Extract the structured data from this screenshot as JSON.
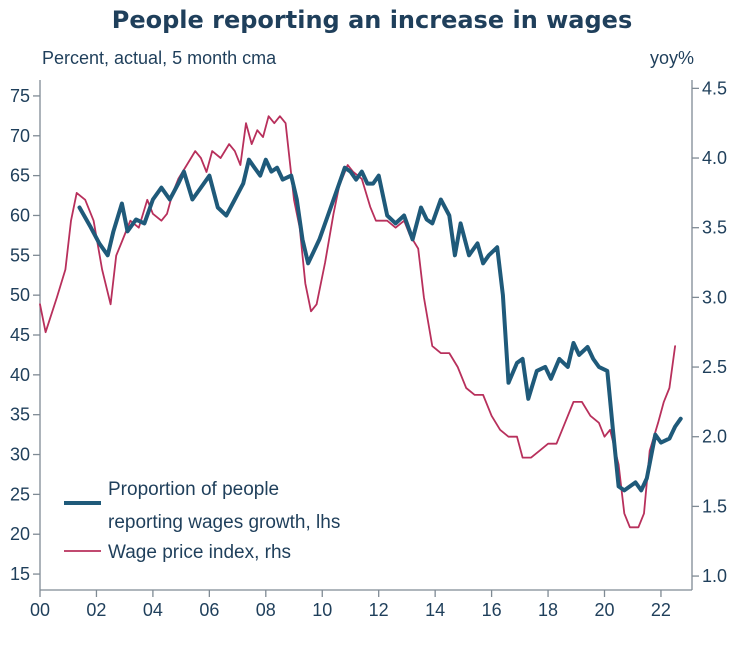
{
  "chart_data": {
    "type": "line",
    "title": "People reporting an increase in wages",
    "left_unit_label": "Percent, actual, 5 month cma",
    "right_unit_label": "yoy%",
    "x_ticks": [
      "00",
      "02",
      "04",
      "06",
      "08",
      "10",
      "12",
      "14",
      "16",
      "18",
      "20",
      "22"
    ],
    "x_tick_years": [
      2000,
      2002,
      2004,
      2006,
      2008,
      2010,
      2012,
      2014,
      2016,
      2018,
      2020,
      2022
    ],
    "xlim": [
      2000,
      2023.1
    ],
    "y_left_ticks": [
      "15",
      "20",
      "25",
      "30",
      "35",
      "40",
      "45",
      "50",
      "55",
      "60",
      "65",
      "70",
      "75"
    ],
    "ylim_left": [
      13,
      77
    ],
    "y_right_ticks": [
      "1.0",
      "1.5",
      "2.0",
      "2.5",
      "3.0",
      "3.5",
      "4.0",
      "4.5"
    ],
    "ylim_right": [
      0.9,
      4.56
    ],
    "legend_position": "bottom-left",
    "series": [
      {
        "name": "Proportion of people reporting wages growth, lhs",
        "axis": "left",
        "color": "#1f5a7a",
        "x": [
          2001.4,
          2001.8,
          2002.1,
          2002.4,
          2002.6,
          2002.9,
          2003.1,
          2003.4,
          2003.7,
          2004.0,
          2004.3,
          2004.6,
          2004.9,
          2005.1,
          2005.4,
          2005.7,
          2006.0,
          2006.3,
          2006.6,
          2006.9,
          2007.2,
          2007.4,
          2007.6,
          2007.8,
          2008.0,
          2008.2,
          2008.4,
          2008.6,
          2008.9,
          2009.1,
          2009.3,
          2009.5,
          2009.7,
          2009.9,
          2010.2,
          2010.5,
          2010.8,
          2011.0,
          2011.2,
          2011.4,
          2011.6,
          2011.8,
          2012.0,
          2012.3,
          2012.6,
          2012.9,
          2013.2,
          2013.5,
          2013.7,
          2013.9,
          2014.2,
          2014.5,
          2014.7,
          2014.9,
          2015.2,
          2015.5,
          2015.7,
          2015.9,
          2016.2,
          2016.4,
          2016.6,
          2016.9,
          2017.1,
          2017.3,
          2017.6,
          2017.9,
          2018.1,
          2018.4,
          2018.7,
          2018.9,
          2019.1,
          2019.4,
          2019.6,
          2019.8,
          2020.1,
          2020.3,
          2020.5,
          2020.7,
          2020.9,
          2021.1,
          2021.3,
          2021.5,
          2021.8,
          2022.0,
          2022.3,
          2022.5,
          2022.7
        ],
        "values": [
          61,
          58.5,
          56.5,
          55,
          58,
          61.5,
          58,
          59.5,
          59,
          62,
          63.5,
          62,
          64,
          65.5,
          62,
          63.5,
          65,
          61,
          60,
          62,
          64,
          67,
          66,
          65,
          67,
          65.5,
          66,
          64.5,
          65,
          62,
          57,
          54,
          55.5,
          57,
          60,
          63,
          66,
          65.5,
          64.5,
          65.5,
          64,
          64,
          65,
          60,
          59,
          60,
          57,
          61,
          59.5,
          59,
          62,
          60,
          55,
          59,
          55,
          56.5,
          54,
          55,
          56,
          50,
          39,
          41.5,
          42,
          37,
          40.5,
          41,
          39.5,
          42,
          41,
          44,
          42.5,
          43.5,
          42,
          41,
          40.5,
          33,
          26,
          25.5,
          26,
          26.5,
          25.5,
          27,
          32.5,
          31.5,
          32,
          33.5,
          34.5
        ]
      },
      {
        "name": "Wage price index, rhs",
        "axis": "right",
        "color": "#b8305c",
        "x": [
          2000.0,
          2000.2,
          2000.6,
          2000.9,
          2001.1,
          2001.3,
          2001.6,
          2001.9,
          2002.2,
          2002.5,
          2002.7,
          2002.9,
          2003.2,
          2003.5,
          2003.8,
          2004.0,
          2004.3,
          2004.5,
          2004.7,
          2004.9,
          2005.2,
          2005.5,
          2005.7,
          2005.9,
          2006.1,
          2006.4,
          2006.7,
          2006.9,
          2007.1,
          2007.3,
          2007.5,
          2007.7,
          2007.9,
          2008.1,
          2008.3,
          2008.5,
          2008.7,
          2009.0,
          2009.2,
          2009.4,
          2009.6,
          2009.8,
          2010.1,
          2010.4,
          2010.6,
          2010.9,
          2011.1,
          2011.4,
          2011.7,
          2011.9,
          2012.1,
          2012.3,
          2012.6,
          2012.9,
          2013.1,
          2013.4,
          2013.6,
          2013.9,
          2014.2,
          2014.5,
          2014.8,
          2015.1,
          2015.4,
          2015.7,
          2016.0,
          2016.3,
          2016.6,
          2016.9,
          2017.1,
          2017.4,
          2017.7,
          2018.0,
          2018.3,
          2018.6,
          2018.9,
          2019.2,
          2019.5,
          2019.8,
          2020.0,
          2020.2,
          2020.5,
          2020.7,
          2020.9,
          2021.2,
          2021.4,
          2021.6,
          2021.9,
          2022.1,
          2022.3,
          2022.5
        ],
        "values": [
          2.95,
          2.75,
          3.0,
          3.2,
          3.55,
          3.75,
          3.7,
          3.55,
          3.2,
          2.95,
          3.3,
          3.4,
          3.55,
          3.5,
          3.7,
          3.6,
          3.55,
          3.6,
          3.75,
          3.85,
          3.95,
          4.05,
          4.0,
          3.9,
          4.05,
          4.0,
          4.1,
          4.05,
          3.95,
          4.25,
          4.1,
          4.2,
          4.15,
          4.3,
          4.25,
          4.3,
          4.25,
          3.7,
          3.5,
          3.1,
          2.9,
          2.95,
          3.25,
          3.6,
          3.8,
          3.95,
          3.9,
          3.85,
          3.65,
          3.55,
          3.55,
          3.55,
          3.5,
          3.55,
          3.45,
          3.35,
          3.0,
          2.65,
          2.6,
          2.6,
          2.5,
          2.35,
          2.3,
          2.3,
          2.15,
          2.05,
          2.0,
          2.0,
          1.85,
          1.85,
          1.9,
          1.95,
          1.95,
          2.1,
          2.25,
          2.25,
          2.15,
          2.1,
          2.0,
          2.05,
          1.8,
          1.45,
          1.35,
          1.35,
          1.45,
          1.9,
          2.1,
          2.25,
          2.35,
          2.65
        ]
      }
    ]
  }
}
